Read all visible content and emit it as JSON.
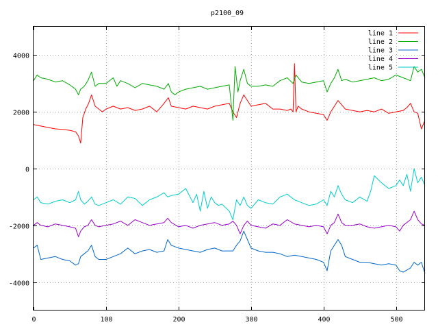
{
  "chart_data": {
    "type": "line",
    "title": "p2100_09",
    "xlabel": "",
    "ylabel": "",
    "xlim": [
      0,
      540
    ],
    "ylim": [
      -5000,
      5000
    ],
    "x_ticks": [
      0,
      100,
      200,
      300,
      400,
      500
    ],
    "y_ticks": [
      -4000,
      -2000,
      0,
      2000,
      4000
    ],
    "grid": true,
    "legend_position": "top-right",
    "series": [
      {
        "name": "line 1",
        "color": "#ff0000",
        "x": [
          0,
          10,
          20,
          30,
          40,
          50,
          58,
          62,
          65,
          68,
          72,
          76,
          80,
          85,
          90,
          95,
          100,
          110,
          120,
          130,
          140,
          150,
          160,
          170,
          180,
          186,
          190,
          200,
          210,
          220,
          230,
          240,
          250,
          260,
          270,
          275,
          280,
          285,
          290,
          300,
          310,
          320,
          330,
          340,
          350,
          355,
          358,
          360,
          362,
          365,
          370,
          380,
          390,
          400,
          405,
          410,
          415,
          420,
          430,
          440,
          450,
          460,
          470,
          480,
          490,
          500,
          510,
          515,
          520,
          525,
          530,
          535,
          540
        ],
        "values": [
          1550,
          1500,
          1450,
          1400,
          1380,
          1350,
          1300,
          1150,
          900,
          1800,
          2100,
          2300,
          2600,
          2200,
          2100,
          2000,
          2100,
          2200,
          2100,
          2150,
          2050,
          2100,
          2200,
          2000,
          2300,
          2500,
          2200,
          2150,
          2100,
          2200,
          2150,
          2100,
          2200,
          2250,
          2300,
          2000,
          1800,
          2300,
          2600,
          2200,
          2250,
          2300,
          2100,
          2100,
          2050,
          2100,
          2000,
          3700,
          2000,
          2200,
          2100,
          2000,
          1950,
          1900,
          1700,
          2000,
          2200,
          2400,
          2100,
          2050,
          2000,
          2050,
          2000,
          2100,
          1950,
          2000,
          2050,
          2150,
          2300,
          2000,
          1950,
          1400,
          1700
        ]
      },
      {
        "name": "line 2",
        "color": "#00aa00",
        "x": [
          0,
          5,
          10,
          20,
          30,
          40,
          50,
          58,
          62,
          65,
          70,
          75,
          80,
          85,
          90,
          100,
          110,
          115,
          120,
          130,
          140,
          150,
          160,
          170,
          180,
          186,
          190,
          195,
          200,
          210,
          220,
          230,
          240,
          250,
          260,
          270,
          275,
          278,
          282,
          285,
          290,
          295,
          300,
          310,
          320,
          330,
          340,
          350,
          358,
          362,
          370,
          380,
          390,
          400,
          405,
          410,
          415,
          420,
          425,
          430,
          440,
          450,
          460,
          470,
          480,
          490,
          500,
          510,
          520,
          525,
          530,
          535,
          540
        ],
        "values": [
          3100,
          3300,
          3200,
          3150,
          3050,
          3100,
          2950,
          2800,
          2600,
          2800,
          2900,
          3100,
          3400,
          2900,
          3000,
          3000,
          3200,
          2900,
          3100,
          3000,
          2850,
          3000,
          2950,
          2900,
          2800,
          3000,
          2700,
          2600,
          2700,
          2800,
          2850,
          2900,
          2800,
          2850,
          2900,
          2950,
          1700,
          3600,
          2700,
          3100,
          3500,
          3000,
          2900,
          2900,
          2950,
          2900,
          3100,
          3200,
          3000,
          3300,
          3050,
          3000,
          3050,
          3100,
          2700,
          3000,
          3200,
          3500,
          3100,
          3150,
          3050,
          3100,
          3150,
          3200,
          3100,
          3150,
          3300,
          3200,
          3100,
          3600,
          3400,
          3500,
          3200
        ]
      },
      {
        "name": "line 3",
        "color": "#0066cc",
        "x": [
          0,
          5,
          10,
          20,
          30,
          40,
          50,
          58,
          62,
          65,
          70,
          75,
          80,
          85,
          90,
          100,
          110,
          120,
          130,
          140,
          150,
          160,
          170,
          180,
          185,
          190,
          200,
          210,
          220,
          230,
          240,
          250,
          260,
          270,
          275,
          280,
          285,
          290,
          295,
          300,
          310,
          320,
          330,
          340,
          350,
          360,
          370,
          380,
          390,
          400,
          405,
          410,
          415,
          420,
          425,
          430,
          440,
          450,
          460,
          470,
          480,
          490,
          500,
          505,
          510,
          520,
          525,
          530,
          535,
          540
        ],
        "values": [
          -2800,
          -2700,
          -3200,
          -3150,
          -3100,
          -3200,
          -3250,
          -3400,
          -3350,
          -3100,
          -3000,
          -2900,
          -2700,
          -3100,
          -3200,
          -3200,
          -3100,
          -3000,
          -2800,
          -3000,
          -2900,
          -2850,
          -2950,
          -2900,
          -2500,
          -2700,
          -2800,
          -2850,
          -2900,
          -2950,
          -2850,
          -2800,
          -2900,
          -2900,
          -2900,
          -2700,
          -2550,
          -2200,
          -2500,
          -2800,
          -2900,
          -2950,
          -2950,
          -3000,
          -3100,
          -3050,
          -3100,
          -3150,
          -3200,
          -3300,
          -3600,
          -2900,
          -2700,
          -2500,
          -2700,
          -3100,
          -3200,
          -3300,
          -3300,
          -3350,
          -3400,
          -3350,
          -3400,
          -3600,
          -3650,
          -3500,
          -3300,
          -3400,
          -3300,
          -3700
        ]
      },
      {
        "name": "line 4",
        "color": "#9900cc",
        "x": [
          0,
          5,
          10,
          20,
          30,
          40,
          50,
          58,
          62,
          65,
          70,
          75,
          80,
          85,
          90,
          100,
          110,
          120,
          130,
          140,
          150,
          160,
          170,
          180,
          185,
          190,
          200,
          210,
          220,
          230,
          240,
          250,
          260,
          270,
          275,
          280,
          285,
          290,
          295,
          300,
          310,
          320,
          330,
          340,
          350,
          360,
          370,
          380,
          390,
          400,
          405,
          410,
          415,
          420,
          425,
          430,
          440,
          450,
          460,
          470,
          480,
          490,
          500,
          505,
          510,
          520,
          525,
          530,
          535,
          540
        ],
        "values": [
          -2000,
          -1900,
          -2000,
          -2050,
          -1950,
          -2000,
          -2050,
          -2100,
          -2400,
          -2200,
          -2050,
          -2000,
          -1800,
          -2000,
          -2050,
          -2000,
          -1950,
          -1850,
          -2000,
          -1800,
          -1900,
          -2000,
          -1950,
          -1900,
          -1750,
          -1900,
          -2050,
          -2000,
          -2100,
          -2000,
          -1950,
          -1900,
          -2000,
          -1950,
          -1850,
          -2000,
          -2300,
          -2000,
          -1850,
          -2000,
          -2050,
          -2100,
          -1950,
          -2000,
          -1800,
          -1950,
          -2000,
          -2050,
          -2000,
          -2050,
          -2300,
          -2000,
          -1900,
          -1600,
          -1900,
          -2000,
          -2000,
          -1950,
          -2050,
          -2100,
          -2050,
          -2000,
          -2050,
          -2200,
          -2000,
          -1800,
          -1500,
          -1800,
          -1950,
          -2000
        ]
      },
      {
        "name": "line 5",
        "color": "#00cccc",
        "x": [
          0,
          5,
          10,
          20,
          30,
          40,
          50,
          58,
          62,
          65,
          70,
          75,
          80,
          85,
          90,
          100,
          110,
          120,
          130,
          140,
          150,
          160,
          170,
          180,
          185,
          190,
          200,
          210,
          220,
          225,
          230,
          235,
          240,
          245,
          250,
          255,
          260,
          270,
          275,
          280,
          285,
          290,
          295,
          300,
          310,
          320,
          330,
          340,
          350,
          360,
          370,
          380,
          390,
          400,
          405,
          410,
          415,
          420,
          425,
          430,
          440,
          450,
          460,
          465,
          470,
          480,
          490,
          500,
          505,
          510,
          515,
          520,
          525,
          530,
          535,
          540
        ],
        "values": [
          -1100,
          -1000,
          -1200,
          -1250,
          -1150,
          -1100,
          -1200,
          -1100,
          -800,
          -1100,
          -1250,
          -1150,
          -1000,
          -1250,
          -1300,
          -1200,
          -1100,
          -1250,
          -1000,
          -1050,
          -1300,
          -1100,
          -1000,
          -850,
          -1000,
          -950,
          -900,
          -700,
          -1200,
          -900,
          -1500,
          -800,
          -1400,
          -1000,
          -1200,
          -1300,
          -1250,
          -1500,
          -1800,
          -1100,
          -1300,
          -1000,
          -1300,
          -1400,
          -1100,
          -1200,
          -1250,
          -1000,
          -900,
          -1100,
          -1200,
          -1300,
          -1250,
          -1100,
          -1300,
          -800,
          -1000,
          -600,
          -900,
          -1100,
          -1200,
          -1000,
          -1150,
          -800,
          -250,
          -500,
          -700,
          -600,
          -400,
          -600,
          -200,
          -800,
          0,
          -500,
          -300,
          -600
        ]
      }
    ]
  }
}
